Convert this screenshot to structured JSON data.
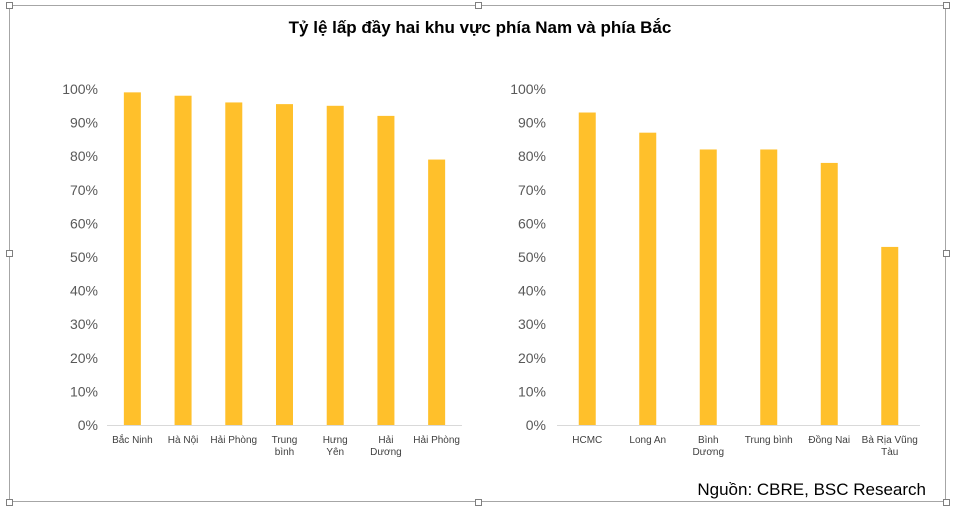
{
  "title": "Tỷ lệ lấp đầy hai khu vực phía Nam và phía Bắc",
  "source": "Nguồn: CBRE, BSC Research",
  "colors": {
    "bar": "#FFC02B",
    "axis": "#d9d9d9",
    "frame": "#a6a6a6"
  },
  "chart_data": [
    {
      "type": "bar",
      "title": "",
      "categories": [
        "Bắc Ninh",
        "Hà Nội",
        "Hải Phòng",
        "Trung bình",
        "Hưng Yên",
        "Hải Dương",
        "Hải Phòng"
      ],
      "category_lines": [
        [
          "Bắc Ninh"
        ],
        [
          "Hà Nội"
        ],
        [
          "Hải Phòng"
        ],
        [
          "Trung",
          "bình"
        ],
        [
          "Hưng",
          "Yên"
        ],
        [
          "Hải",
          "Dương"
        ],
        [
          "Hải Phòng"
        ]
      ],
      "values": [
        99,
        98,
        96,
        95.5,
        95,
        92,
        79
      ],
      "ylim": [
        0,
        100
      ],
      "yticks": [
        0,
        10,
        20,
        30,
        40,
        50,
        60,
        70,
        80,
        90,
        100
      ],
      "ytick_labels": [
        "0%",
        "10%",
        "20%",
        "30%",
        "40%",
        "50%",
        "60%",
        "70%",
        "80%",
        "90%",
        "100%"
      ],
      "grid": false,
      "legend": "none"
    },
    {
      "type": "bar",
      "title": "",
      "categories": [
        "HCMC",
        "Long An",
        "Bình Dương",
        "Trung bình",
        "Đồng Nai",
        "Bà Rịa Vũng Tàu"
      ],
      "category_lines": [
        [
          "HCMC"
        ],
        [
          "Long An"
        ],
        [
          "Bình",
          "Dương"
        ],
        [
          "Trung bình"
        ],
        [
          "Đồng Nai"
        ],
        [
          "Bà Rịa Vũng",
          "Tàu"
        ]
      ],
      "values": [
        93,
        87,
        82,
        82,
        78,
        53
      ],
      "ylim": [
        0,
        100
      ],
      "yticks": [
        0,
        10,
        20,
        30,
        40,
        50,
        60,
        70,
        80,
        90,
        100
      ],
      "ytick_labels": [
        "0%",
        "10%",
        "20%",
        "30%",
        "40%",
        "50%",
        "60%",
        "70%",
        "80%",
        "90%",
        "100%"
      ],
      "grid": false,
      "legend": "none"
    }
  ]
}
